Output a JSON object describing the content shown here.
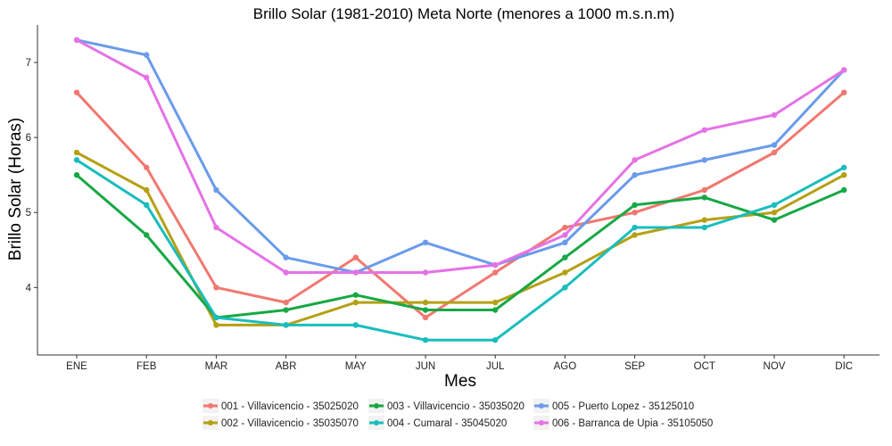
{
  "chart_data": {
    "type": "line",
    "title": "Brillo Solar (1981-2010) Meta Norte (menores a 1000 m.s.n.m)",
    "xlabel": "Mes",
    "ylabel": "Brillo Solar (Horas)",
    "categories": [
      "ENE",
      "FEB",
      "MAR",
      "ABR",
      "MAY",
      "JUN",
      "JUL",
      "AGO",
      "SEP",
      "OCT",
      "NOV",
      "DIC"
    ],
    "yticks": [
      4,
      5,
      6,
      7
    ],
    "ylim": [
      3.1,
      7.5
    ],
    "grid": false,
    "legend_position": "bottom",
    "series": [
      {
        "name": "001 - Villavicencio - 35025020",
        "color": "#F07870",
        "values": [
          6.6,
          5.6,
          4.0,
          3.8,
          4.4,
          3.6,
          4.2,
          4.8,
          5.0,
          5.3,
          5.8,
          6.6
        ]
      },
      {
        "name": "002 - Villavicencio - 35035070",
        "color": "#B5A014",
        "values": [
          5.8,
          5.3,
          3.5,
          3.5,
          3.8,
          3.8,
          3.8,
          4.2,
          4.7,
          4.9,
          5.0,
          5.5
        ]
      },
      {
        "name": "003 - Villavicencio - 35035020",
        "color": "#17A845",
        "values": [
          5.5,
          4.7,
          3.6,
          3.7,
          3.9,
          3.7,
          3.7,
          4.4,
          5.1,
          5.2,
          4.9,
          5.3
        ]
      },
      {
        "name": "004 - Cumaral - 35045020",
        "color": "#19BDBD",
        "values": [
          5.7,
          5.1,
          3.6,
          3.5,
          3.5,
          3.3,
          3.3,
          4.0,
          4.8,
          4.8,
          5.1,
          5.6
        ]
      },
      {
        "name": "005 - Puerto Lopez - 35125010",
        "color": "#6A9BEB",
        "values": [
          7.3,
          7.1,
          5.3,
          4.4,
          4.2,
          4.6,
          4.3,
          4.6,
          5.5,
          5.7,
          5.9,
          6.9
        ]
      },
      {
        "name": "006 - Barranca de Upia - 35105050",
        "color": "#E572E5",
        "values": [
          7.3,
          6.8,
          4.8,
          4.2,
          4.2,
          4.2,
          4.3,
          4.7,
          5.7,
          6.1,
          6.3,
          6.9
        ]
      }
    ]
  }
}
